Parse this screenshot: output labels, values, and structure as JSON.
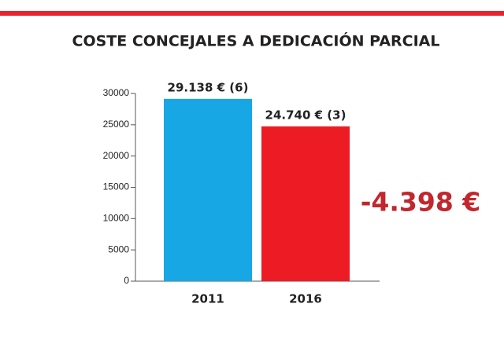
{
  "chart_data": {
    "type": "bar",
    "title": "COSTE CONCEJALES A DEDICACIÓN PARCIAL",
    "categories": [
      "2011",
      "2016"
    ],
    "values": [
      29138,
      24740
    ],
    "value_labels": [
      "29.138 € (6)",
      "24.740 € (3)"
    ],
    "colors": [
      "#17a7e5",
      "#ed1c24"
    ],
    "ylim": [
      0,
      30000
    ],
    "yticks": [
      0,
      5000,
      10000,
      15000,
      20000,
      25000,
      30000
    ],
    "annotation": "-4.398 €"
  }
}
